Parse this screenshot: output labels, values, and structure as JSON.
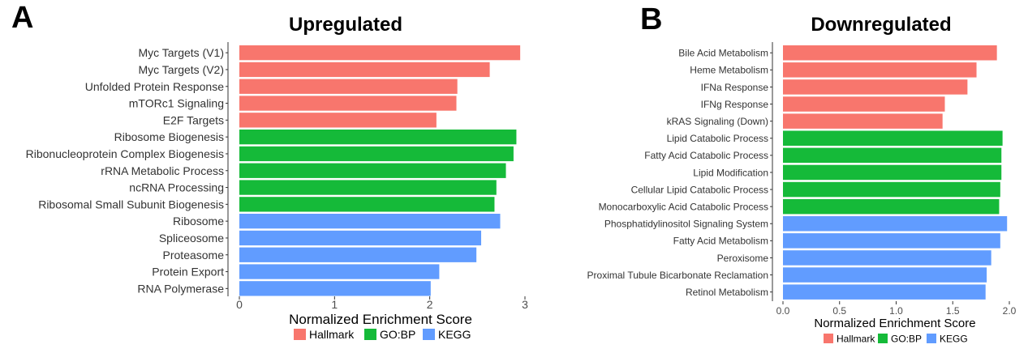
{
  "panels": {
    "a_letter": "A",
    "b_letter": "B"
  },
  "colors": {
    "Hallmark": "#F8766D",
    "GO:BP": "#15BA39",
    "KEGG": "#619CFF"
  },
  "chart_data": [
    {
      "type": "bar",
      "orientation": "horizontal",
      "title": "Upregulated",
      "xlabel": "Normalized Enrichment Score",
      "ylabel": "",
      "xlim": [
        0,
        3.1
      ],
      "xticks": [
        "0",
        "1",
        "2",
        "3"
      ],
      "grid": false,
      "legend_position": "bottom",
      "legend": [
        "Hallmark",
        "GO:BP",
        "KEGG"
      ],
      "categories": [
        "Myc Targets (V1)",
        "Myc Targets (V2)",
        "Unfolded Protein Response",
        "mTORc1 Signaling",
        "E2F Targets",
        "Ribosome Biogenesis",
        "Ribonucleoprotein Complex Biogenesis",
        "rRNA Metabolic Process",
        "ncRNA Processing",
        "Ribosomal Small Subunit Biogenesis",
        "Ribosome",
        "Spliceosome",
        "Proteasome",
        "Protein Export",
        "RNA Polymerase"
      ],
      "values": [
        2.95,
        2.63,
        2.29,
        2.28,
        2.07,
        2.91,
        2.88,
        2.8,
        2.7,
        2.68,
        2.74,
        2.54,
        2.49,
        2.1,
        2.01
      ],
      "groups": [
        "Hallmark",
        "Hallmark",
        "Hallmark",
        "Hallmark",
        "Hallmark",
        "GO:BP",
        "GO:BP",
        "GO:BP",
        "GO:BP",
        "GO:BP",
        "KEGG",
        "KEGG",
        "KEGG",
        "KEGG",
        "KEGG"
      ]
    },
    {
      "type": "bar",
      "orientation": "horizontal",
      "title": "Downregulated",
      "xlabel": "Normalized Enrichment Score",
      "ylabel": "",
      "xlim": [
        0,
        2.05
      ],
      "xticks": [
        "0.0",
        "0.5",
        "1.0",
        "1.5",
        "2.0"
      ],
      "grid": false,
      "legend_position": "bottom",
      "legend": [
        "Hallmark",
        "GO:BP",
        "KEGG"
      ],
      "categories": [
        "Bile Acid Metabolism",
        "Heme Metabolism",
        "IFNa Response",
        "IFNg Response",
        "kRAS Signaling (Down)",
        "Lipid Catabolic Process",
        "Fatty Acid Catabolic Process",
        "Lipid Modification",
        "Cellular Lipid Catabolic Process",
        "Monocarboxylic Acid Catabolic Process",
        "Phosphatidylinositol Signaling System",
        "Fatty Acid Metabolism",
        "Peroxisome",
        "Proximal Tubule Bicarbonate Reclamation",
        "Retinol Metabolism"
      ],
      "values": [
        1.89,
        1.71,
        1.63,
        1.43,
        1.41,
        1.94,
        1.93,
        1.93,
        1.92,
        1.91,
        1.98,
        1.92,
        1.84,
        1.8,
        1.79
      ],
      "groups": [
        "Hallmark",
        "Hallmark",
        "Hallmark",
        "Hallmark",
        "Hallmark",
        "GO:BP",
        "GO:BP",
        "GO:BP",
        "GO:BP",
        "GO:BP",
        "KEGG",
        "KEGG",
        "KEGG",
        "KEGG",
        "KEGG"
      ]
    }
  ]
}
